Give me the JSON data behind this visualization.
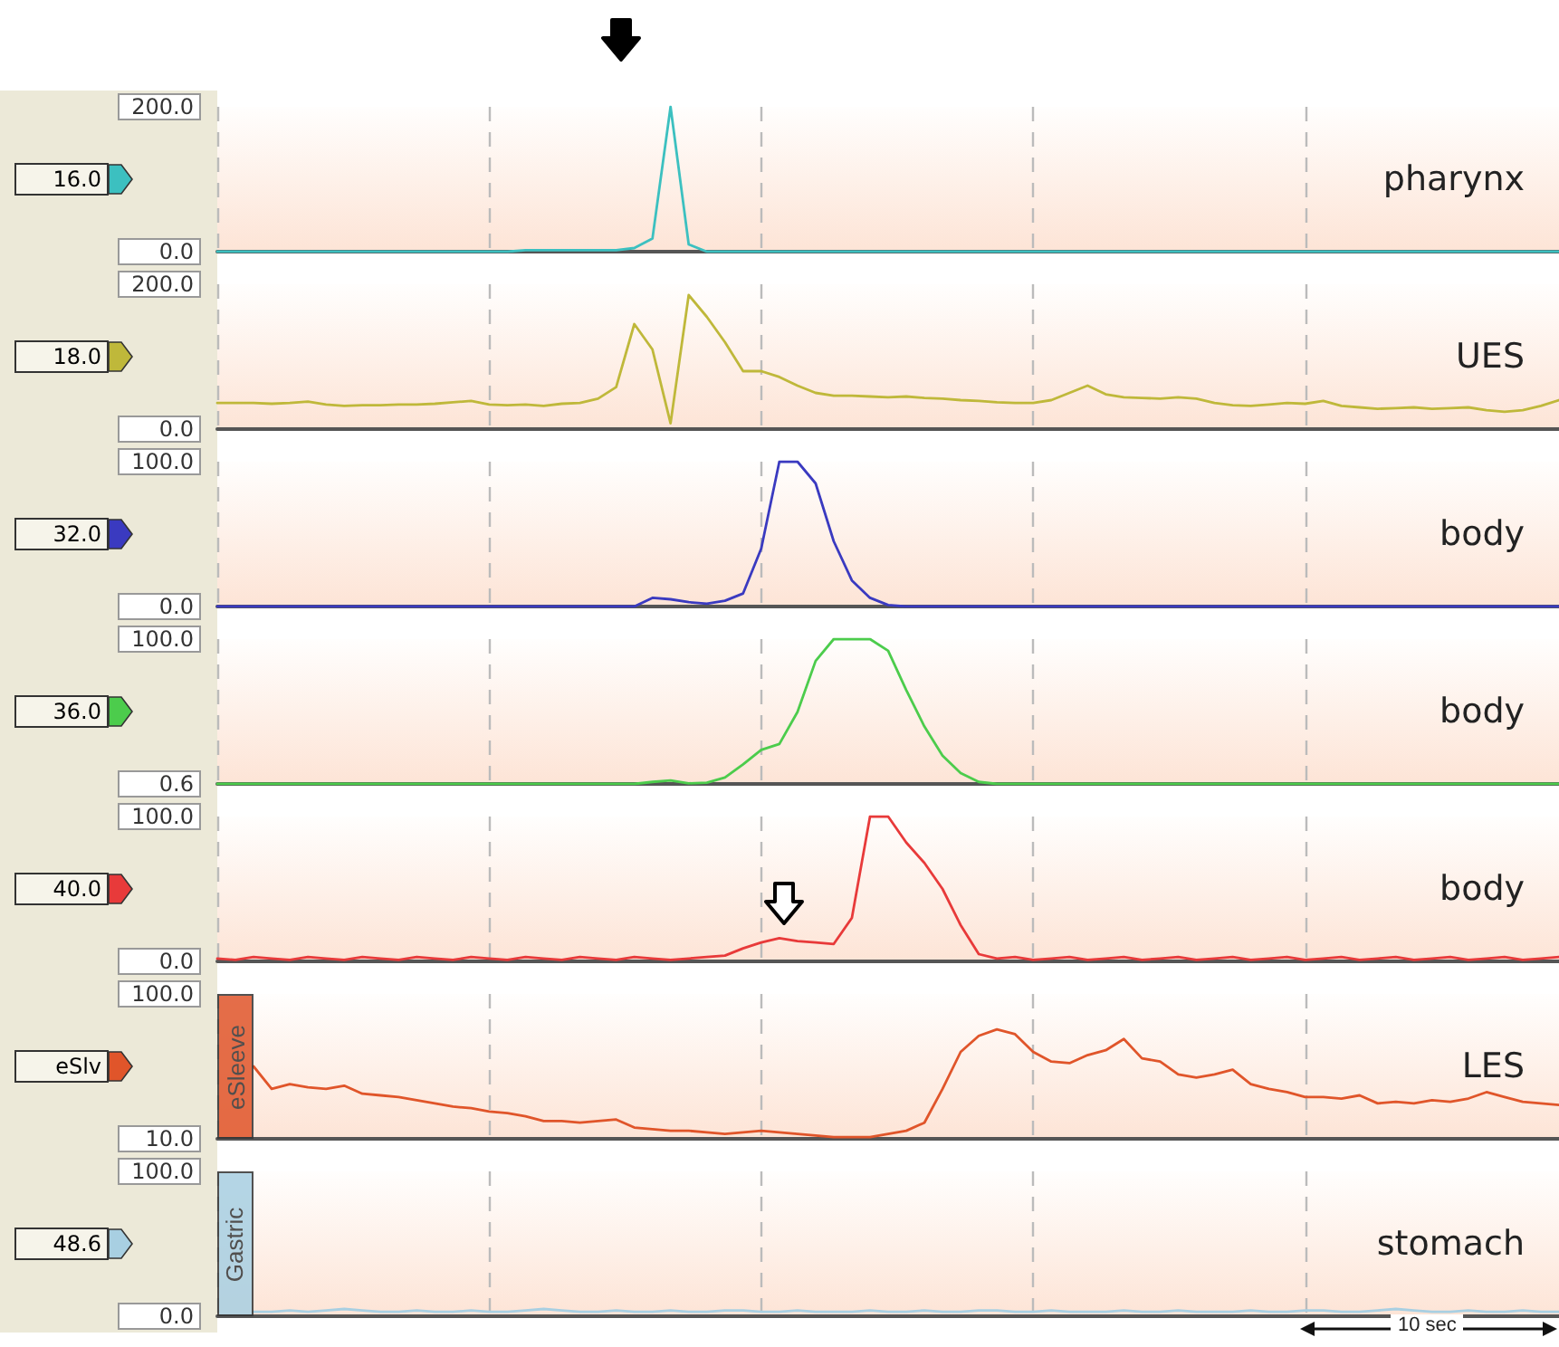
{
  "chart_data": [
    {
      "type": "line",
      "title": "pharynx",
      "categories": [
        null,
        null,
        null,
        null,
        null,
        null,
        null,
        null,
        null,
        null,
        null,
        null,
        null,
        null,
        null,
        null,
        null,
        null,
        null,
        null,
        null,
        null,
        null,
        null,
        null,
        null,
        null,
        null,
        null,
        null,
        null,
        null,
        null,
        null,
        null,
        null,
        null,
        null,
        null,
        null,
        null,
        null,
        null,
        null,
        null,
        null,
        null,
        null,
        null,
        null,
        null,
        null,
        null,
        null,
        null,
        null,
        null,
        null,
        null,
        null,
        null,
        null,
        null,
        null,
        null,
        null,
        null,
        null,
        null,
        null,
        null,
        null,
        null,
        null,
        null
      ],
      "series": [
        {
          "color": "#3cc0c0",
          "values": [
            0,
            0,
            0,
            0,
            0,
            0,
            0,
            0,
            0,
            0,
            0,
            0,
            0,
            0,
            0,
            0,
            0,
            2,
            2,
            2,
            2,
            2,
            2,
            5,
            18,
            200,
            10,
            0,
            0,
            0,
            0,
            0,
            0,
            0,
            0,
            0,
            0,
            0,
            0,
            0,
            0,
            0,
            0,
            0,
            0,
            0,
            0,
            0,
            0,
            0,
            0,
            0,
            0,
            0,
            0,
            0,
            0,
            0,
            0,
            0,
            0,
            0,
            0,
            0,
            0,
            0,
            0,
            0,
            0,
            0,
            0,
            0,
            0,
            0,
            0
          ]
        }
      ],
      "ylim": [
        0,
        200
      ],
      "yticks": [
        {
          "value": 0,
          "label": "0.0"
        },
        {
          "value": 200,
          "label": "200.0"
        }
      ],
      "grid": "x",
      "tick_labels": "y",
      "annotations": [
        "16.0"
      ]
    },
    {
      "type": "line",
      "title": "UES",
      "categories": [
        null,
        null,
        null,
        null,
        null,
        null,
        null,
        null,
        null,
        null,
        null,
        null,
        null,
        null,
        null,
        null,
        null,
        null,
        null,
        null,
        null,
        null,
        null,
        null,
        null,
        null,
        null,
        null,
        null,
        null,
        null,
        null,
        null,
        null,
        null,
        null,
        null,
        null,
        null,
        null,
        null,
        null,
        null,
        null,
        null,
        null,
        null,
        null,
        null,
        null,
        null,
        null,
        null,
        null,
        null,
        null,
        null,
        null,
        null,
        null,
        null,
        null,
        null,
        null,
        null,
        null,
        null,
        null,
        null,
        null,
        null,
        null,
        null,
        null,
        null
      ],
      "series": [
        {
          "color": "#bfb83a",
          "values": [
            36,
            36,
            36,
            35,
            36,
            38,
            34,
            32,
            33,
            33,
            34,
            34,
            35,
            37,
            39,
            34,
            33,
            34,
            32,
            35,
            36,
            42,
            58,
            145,
            110,
            8,
            185,
            155,
            120,
            80,
            80,
            72,
            60,
            50,
            46,
            46,
            45,
            44,
            45,
            43,
            42,
            40,
            39,
            37,
            36,
            36,
            40,
            50,
            60,
            48,
            44,
            43,
            42,
            44,
            42,
            36,
            33,
            32,
            34,
            36,
            35,
            39,
            32,
            30,
            28,
            29,
            30,
            28,
            29,
            30,
            26,
            24,
            26,
            32,
            40
          ]
        }
      ],
      "ylim": [
        0,
        200
      ],
      "yticks": [
        {
          "value": 0,
          "label": "0.0"
        },
        {
          "value": 200,
          "label": "200.0"
        }
      ],
      "grid": "x",
      "tick_labels": "y",
      "annotations": [
        "18.0"
      ]
    },
    {
      "type": "line",
      "title": "body",
      "categories": [
        null,
        null,
        null,
        null,
        null,
        null,
        null,
        null,
        null,
        null,
        null,
        null,
        null,
        null,
        null,
        null,
        null,
        null,
        null,
        null,
        null,
        null,
        null,
        null,
        null,
        null,
        null,
        null,
        null,
        null,
        null,
        null,
        null,
        null,
        null,
        null,
        null,
        null,
        null,
        null,
        null,
        null,
        null,
        null,
        null,
        null,
        null,
        null,
        null,
        null,
        null,
        null,
        null,
        null,
        null,
        null,
        null,
        null,
        null,
        null,
        null,
        null,
        null,
        null,
        null,
        null,
        null,
        null,
        null,
        null,
        null,
        null,
        null,
        null,
        null
      ],
      "series": [
        {
          "color": "#3a3ac0",
          "values": [
            0,
            0,
            0,
            0,
            0,
            0,
            0,
            0,
            0,
            0,
            0,
            0,
            0,
            0,
            0,
            0,
            0,
            0,
            0,
            0,
            0,
            0,
            0,
            0,
            6,
            5,
            3,
            2,
            4,
            9,
            40,
            100,
            100,
            85,
            45,
            18,
            6,
            1,
            0,
            0,
            0,
            0,
            0,
            0,
            0,
            0,
            0,
            0,
            0,
            0,
            0,
            0,
            0,
            0,
            0,
            0,
            0,
            0,
            0,
            0,
            0,
            0,
            0,
            0,
            0,
            0,
            0,
            0,
            0,
            0,
            0,
            0,
            0,
            0,
            0
          ]
        }
      ],
      "ylim": [
        0,
        100
      ],
      "yticks": [
        {
          "value": 0,
          "label": "0.0"
        },
        {
          "value": 100,
          "label": "100.0"
        }
      ],
      "grid": "x",
      "tick_labels": "y",
      "annotations": [
        "32.0"
      ]
    },
    {
      "type": "line",
      "title": "body",
      "categories": [
        null,
        null,
        null,
        null,
        null,
        null,
        null,
        null,
        null,
        null,
        null,
        null,
        null,
        null,
        null,
        null,
        null,
        null,
        null,
        null,
        null,
        null,
        null,
        null,
        null,
        null,
        null,
        null,
        null,
        null,
        null,
        null,
        null,
        null,
        null,
        null,
        null,
        null,
        null,
        null,
        null,
        null,
        null,
        null,
        null,
        null,
        null,
        null,
        null,
        null,
        null,
        null,
        null,
        null,
        null,
        null,
        null,
        null,
        null,
        null,
        null,
        null,
        null,
        null,
        null,
        null,
        null,
        null,
        null,
        null,
        null,
        null,
        null,
        null,
        null
      ],
      "series": [
        {
          "color": "#4ccc4c",
          "values": [
            0.6,
            0.6,
            0.6,
            0.6,
            0.6,
            0.6,
            0.6,
            0.6,
            0.6,
            0.6,
            0.6,
            0.6,
            0.6,
            0.6,
            0.6,
            0.6,
            0.6,
            0.6,
            0.6,
            0.6,
            0.6,
            0.6,
            0.6,
            0.6,
            2,
            3,
            1,
            1.5,
            5,
            14,
            24,
            28,
            50,
            85,
            100,
            100,
            100,
            92,
            65,
            40,
            20,
            8,
            2,
            0.6,
            0.6,
            0.6,
            0.6,
            0.6,
            0.6,
            0.6,
            0.6,
            0.6,
            0.6,
            0.6,
            0.6,
            0.6,
            0.6,
            0.6,
            0.6,
            0.6,
            0.6,
            0.6,
            0.6,
            0.6,
            0.6,
            0.6,
            0.6,
            0.6,
            0.6,
            0.6,
            0.6,
            0.6,
            0.6,
            0.6,
            0.6
          ]
        }
      ],
      "ylim": [
        0.6,
        100
      ],
      "yticks": [
        {
          "value": 0.6,
          "label": "0.6"
        },
        {
          "value": 100,
          "label": "100.0"
        }
      ],
      "grid": "x",
      "tick_labels": "y",
      "annotations": [
        "36.0"
      ]
    },
    {
      "type": "line",
      "title": "body",
      "categories": [
        null,
        null,
        null,
        null,
        null,
        null,
        null,
        null,
        null,
        null,
        null,
        null,
        null,
        null,
        null,
        null,
        null,
        null,
        null,
        null,
        null,
        null,
        null,
        null,
        null,
        null,
        null,
        null,
        null,
        null,
        null,
        null,
        null,
        null,
        null,
        null,
        null,
        null,
        null,
        null,
        null,
        null,
        null,
        null,
        null,
        null,
        null,
        null,
        null,
        null,
        null,
        null,
        null,
        null,
        null,
        null,
        null,
        null,
        null,
        null,
        null,
        null,
        null,
        null,
        null,
        null,
        null,
        null,
        null,
        null,
        null,
        null,
        null,
        null,
        null
      ],
      "series": [
        {
          "color": "#e83a3a",
          "values": [
            2,
            1,
            3,
            2,
            1,
            3,
            2,
            1,
            3,
            2,
            1,
            3,
            2,
            1,
            3,
            2,
            1,
            3,
            2,
            1,
            3,
            2,
            1,
            3,
            2,
            1,
            2,
            3,
            4,
            9,
            13,
            16,
            14,
            13,
            12,
            30,
            100,
            100,
            82,
            68,
            50,
            25,
            5,
            2,
            3,
            1,
            2,
            3,
            1,
            2,
            3,
            1,
            2,
            3,
            1,
            2,
            3,
            1,
            2,
            3,
            1,
            2,
            3,
            1,
            2,
            3,
            1,
            2,
            3,
            1,
            2,
            3,
            1,
            2,
            3
          ]
        }
      ],
      "ylim": [
        0,
        100
      ],
      "yticks": [
        {
          "value": 0,
          "label": "0.0"
        },
        {
          "value": 100,
          "label": "100.0"
        }
      ],
      "grid": "x",
      "tick_labels": "y",
      "annotations": [
        "40.0"
      ]
    },
    {
      "type": "line",
      "title": "LES",
      "categories": [
        null,
        null,
        null,
        null,
        null,
        null,
        null,
        null,
        null,
        null,
        null,
        null,
        null,
        null,
        null,
        null,
        null,
        null,
        null,
        null,
        null,
        null,
        null,
        null,
        null,
        null,
        null,
        null,
        null,
        null,
        null,
        null,
        null,
        null,
        null,
        null,
        null,
        null,
        null,
        null,
        null,
        null,
        null,
        null,
        null,
        null,
        null,
        null,
        null,
        null,
        null,
        null,
        null,
        null,
        null,
        null,
        null,
        null,
        null,
        null,
        null,
        null,
        null,
        null,
        null,
        null,
        null,
        null,
        null,
        null,
        null,
        null,
        null,
        null,
        null
      ],
      "series": [
        {
          "color": "#e0552a",
          "values": [
            null,
            null,
            55,
            41,
            44,
            42,
            41,
            43,
            38,
            37,
            36,
            34,
            32,
            30,
            29,
            27,
            26,
            24,
            21,
            21,
            20,
            21,
            22,
            17,
            16,
            15,
            15,
            14,
            13,
            14,
            15,
            14,
            13,
            12,
            11,
            11,
            11,
            13,
            15,
            20,
            41,
            64,
            74,
            78,
            75,
            64,
            58,
            57,
            62,
            65,
            72,
            60,
            58,
            50,
            48,
            50,
            53,
            44,
            41,
            39,
            36,
            36,
            35,
            37,
            32,
            33,
            32,
            34,
            33,
            35,
            39,
            36,
            33,
            32,
            31
          ]
        }
      ],
      "ylim": [
        10,
        100
      ],
      "yticks": [
        {
          "value": 10,
          "label": "10.0"
        },
        {
          "value": 100,
          "label": "100.0"
        }
      ],
      "grid": "x",
      "tick_labels": "y",
      "annotations": [
        "eSlv",
        "eSleeve"
      ]
    },
    {
      "type": "line",
      "title": "stomach",
      "categories": [
        null,
        null,
        null,
        null,
        null,
        null,
        null,
        null,
        null,
        null,
        null,
        null,
        null,
        null,
        null,
        null,
        null,
        null,
        null,
        null,
        null,
        null,
        null,
        null,
        null,
        null,
        null,
        null,
        null,
        null,
        null,
        null,
        null,
        null,
        null,
        null,
        null,
        null,
        null,
        null,
        null,
        null,
        null,
        null,
        null,
        null,
        null,
        null,
        null,
        null,
        null,
        null,
        null,
        null,
        null,
        null,
        null,
        null,
        null,
        null,
        null,
        null,
        null,
        null,
        null,
        null,
        null,
        null,
        null,
        null,
        null,
        null,
        null,
        null,
        null
      ],
      "series": [
        {
          "color": "#a8cfe2",
          "values": [
            null,
            null,
            3,
            3,
            4,
            3,
            4,
            5,
            4,
            3,
            3,
            4,
            3,
            3,
            4,
            3,
            3,
            4,
            5,
            4,
            3,
            3,
            4,
            3,
            3,
            4,
            3,
            3,
            4,
            4,
            3,
            3,
            4,
            3,
            3,
            3,
            4,
            3,
            3,
            4,
            3,
            3,
            4,
            4,
            3,
            3,
            4,
            3,
            3,
            3,
            4,
            3,
            3,
            4,
            3,
            3,
            3,
            4,
            3,
            3,
            4,
            4,
            3,
            3,
            4,
            5,
            4,
            3,
            3,
            4,
            3,
            3,
            4,
            3,
            3
          ]
        }
      ],
      "ylim": [
        0,
        100
      ],
      "yticks": [
        {
          "value": 0,
          "label": "0.0"
        },
        {
          "value": 100,
          "label": "100.0"
        }
      ],
      "grid": "x",
      "tick_labels": "y",
      "annotations": [
        "48.6",
        "Gastric",
        "10 sec"
      ]
    }
  ]
}
